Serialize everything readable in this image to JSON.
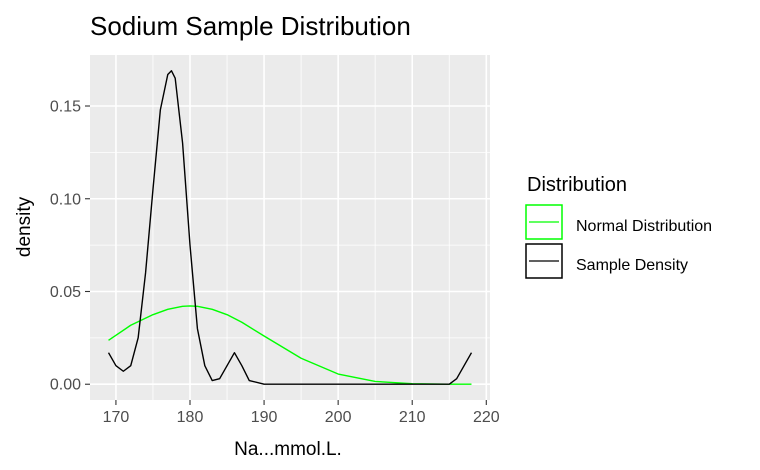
{
  "chart_data": {
    "type": "line",
    "title": "Sodium Sample Distribution",
    "xlabel": "Na...mmol.L.",
    "ylabel": "density",
    "xlim": [
      166.5,
      220.5
    ],
    "ylim": [
      -0.0085,
      0.1775
    ],
    "x_ticks": [
      170,
      180,
      190,
      200,
      210,
      220
    ],
    "y_ticks": [
      0.0,
      0.05,
      0.1,
      0.15
    ],
    "y_tick_labels": [
      "0.00",
      "0.05",
      "0.10",
      "0.15"
    ],
    "grid": true,
    "legend": {
      "title": "Distribution",
      "placement": "right",
      "entries": [
        "Normal Distribution",
        "Sample Density"
      ]
    },
    "series": [
      {
        "name": "Normal Distribution",
        "color": "#00ff00",
        "x": [
          169,
          172,
          175,
          177,
          179,
          180,
          181,
          183,
          185,
          187,
          190,
          195,
          200,
          205,
          210,
          215,
          218
        ],
        "y": [
          0.0237,
          0.0318,
          0.0375,
          0.0404,
          0.042,
          0.0422,
          0.042,
          0.0404,
          0.0375,
          0.0334,
          0.026,
          0.014,
          0.0055,
          0.0015,
          0.0003,
          0.0,
          0.0
        ]
      },
      {
        "name": "Sample Density",
        "color": "#000000",
        "x": [
          169,
          170,
          171,
          172,
          173,
          174,
          175,
          176,
          177,
          177.5,
          178,
          179,
          180,
          181,
          182,
          183,
          184,
          185,
          186,
          187,
          188,
          190,
          195,
          200,
          205,
          210,
          215,
          216,
          217,
          218
        ],
        "y": [
          0.017,
          0.01,
          0.007,
          0.01,
          0.025,
          0.06,
          0.105,
          0.148,
          0.167,
          0.169,
          0.165,
          0.13,
          0.075,
          0.03,
          0.01,
          0.002,
          0.003,
          0.01,
          0.017,
          0.01,
          0.002,
          0.0,
          0.0,
          0.0,
          0.0,
          0.0,
          0.0,
          0.003,
          0.01,
          0.017
        ]
      }
    ]
  }
}
